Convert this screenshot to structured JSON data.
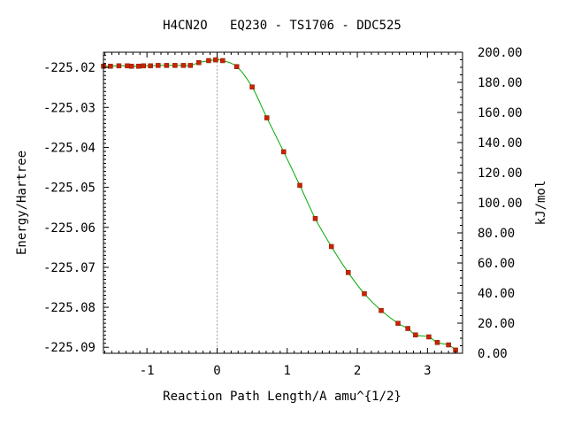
{
  "chart_data": {
    "type": "line",
    "title": "H4CN2O   EQ230 - TS1706 - DDC525",
    "xlabel": "Reaction Path Length/A amu^{1/2}",
    "ylabel": "Energy/Hartree",
    "y2label": "kJ/mol",
    "xlim": [
      -1.62,
      3.5
    ],
    "ylim": [
      -225.0915,
      -225.0162
    ],
    "y2lim": [
      0.0,
      200.0
    ],
    "x_ticks": [
      -1,
      0,
      1,
      2,
      3
    ],
    "x_tick_labels": [
      "-1",
      "0",
      "1",
      "2",
      "3"
    ],
    "y_ticks": [
      -225.02,
      -225.03,
      -225.04,
      -225.05,
      -225.06,
      -225.07,
      -225.08,
      -225.09
    ],
    "y_tick_labels": [
      "-225.02",
      "-225.03",
      "-225.04",
      "-225.05",
      "-225.06",
      "-225.07",
      "-225.08",
      "-225.09"
    ],
    "y2_ticks": [
      0,
      20,
      40,
      60,
      80,
      100,
      120,
      140,
      160,
      180,
      200
    ],
    "y2_tick_labels": [
      "0.00",
      "20.00",
      "40.00",
      "60.00",
      "80.00",
      "100.00",
      "120.00",
      "140.00",
      "160.00",
      "180.00",
      "200.00"
    ],
    "ts_marker_x": 0.0,
    "grid": false,
    "series": [
      {
        "color": "#cc2200",
        "line_color": "#00aa00",
        "x": [
          -1.62,
          -1.52,
          -1.4,
          -1.28,
          -1.22,
          -1.12,
          -1.05,
          -0.95,
          -0.84,
          -0.72,
          -0.6,
          -0.48,
          -0.38,
          -0.26,
          -0.12,
          -0.02,
          0.08,
          0.28,
          0.5,
          0.71,
          0.95,
          1.18,
          1.4,
          1.63,
          1.87,
          2.1,
          2.34,
          2.58,
          2.72,
          2.83,
          3.02,
          3.14,
          3.3,
          3.4
        ],
        "y": [
          -225.0197,
          -225.0197,
          -225.0196,
          -225.0196,
          -225.0197,
          -225.0197,
          -225.0196,
          -225.0196,
          -225.0195,
          -225.0195,
          -225.0195,
          -225.0195,
          -225.0195,
          -225.0188,
          -225.0183,
          -225.0181,
          -225.0183,
          -225.0198,
          -225.0249,
          -225.0326,
          -225.0411,
          -225.0495,
          -225.0578,
          -225.0648,
          -225.0713,
          -225.0766,
          -225.0808,
          -225.084,
          -225.0853,
          -225.0869,
          -225.0874,
          -225.0888,
          -225.0894,
          -225.0907
        ]
      }
    ]
  }
}
